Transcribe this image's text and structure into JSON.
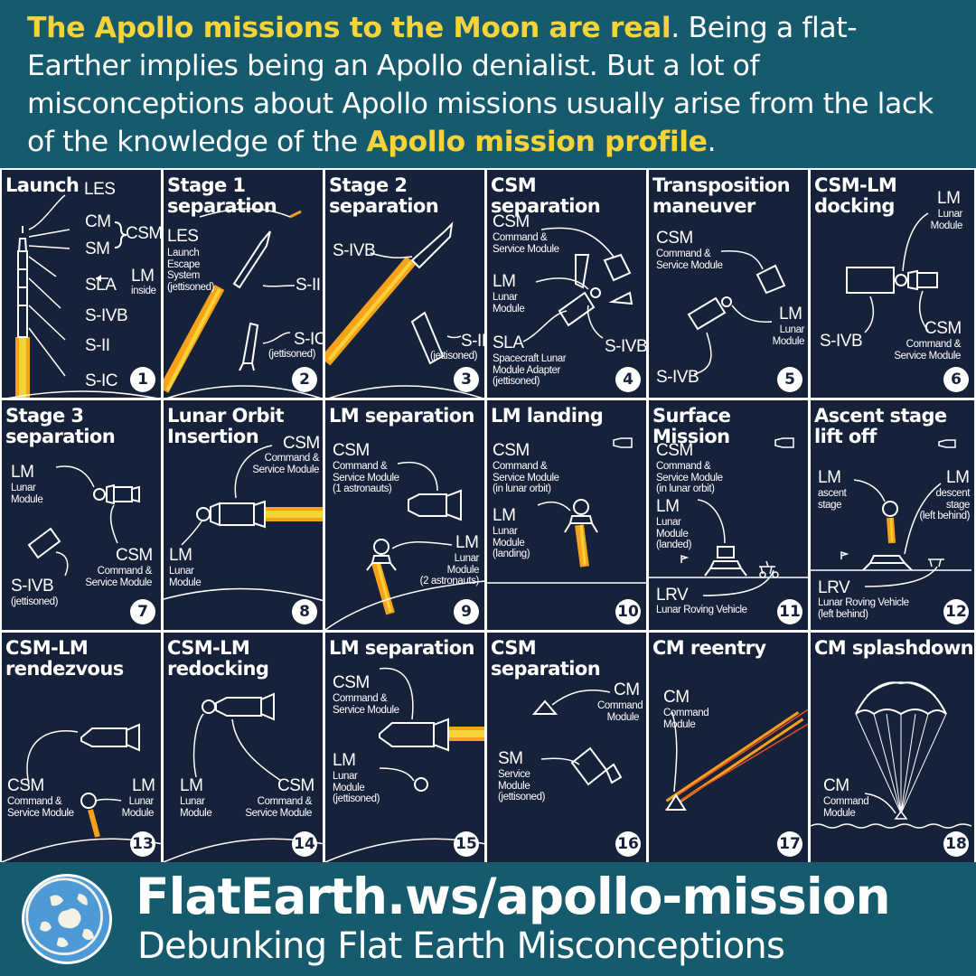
{
  "header": {
    "intro_highlight": "The Apollo missions to the Moon are real",
    "intro_rest": ". Being a flat-Earther implies being an Apollo denialist. But a lot of misconceptions about Apollo missions usually arise from the lack of the knowledge of the ",
    "profile_highlight": "Apollo mission profile",
    "end": "."
  },
  "panels": [
    {
      "title": "Launch",
      "number": "1",
      "labels": {
        "les": "LES",
        "cm": "CM",
        "sm": "SM",
        "csm": "CSM",
        "sla": "SLA",
        "lm": "LM",
        "lm_note": "inside",
        "sivb": "S-IVB",
        "sii": "S-II",
        "sic": "S-IC"
      }
    },
    {
      "title": "Stage 1\nseparation",
      "number": "2",
      "labels": {
        "les": "LES",
        "les_desc": "Launch\nEscape\nSystem\n(jettisoned)",
        "sii": "S-II",
        "sic": "S-IC",
        "sic_note": "(jettisoned)"
      }
    },
    {
      "title": "Stage 2\nseparation",
      "number": "3",
      "labels": {
        "sivb": "S-IVB",
        "sii": "S-II",
        "sii_note": "(jettisoned)"
      }
    },
    {
      "title": "CSM separation",
      "number": "4",
      "labels": {
        "csm": "CSM",
        "csm_desc": "Command &\nService Module",
        "lm": "LM",
        "lm_desc": "Lunar\nModule",
        "sla": "SLA",
        "sla_desc": "Spacecraft Lunar\nModule Adapter\n(jettisoned)",
        "sivb": "S-IVB"
      }
    },
    {
      "title": "Transposition\nmaneuver",
      "number": "5",
      "labels": {
        "csm": "CSM",
        "csm_desc": "Command &\nService Module",
        "lm": "LM",
        "lm_desc": "Lunar\nModule",
        "sivb": "S-IVB"
      }
    },
    {
      "title": "CSM-LM\ndocking",
      "number": "6",
      "labels": {
        "lm": "LM",
        "lm_desc": "Lunar\nModule",
        "sivb": "S-IVB",
        "csm": "CSM",
        "csm_desc": "Command &\nService Module"
      }
    },
    {
      "title": "Stage 3\nseparation",
      "number": "7",
      "labels": {
        "lm": "LM",
        "lm_desc": "Lunar\nModule",
        "sivb": "S-IVB",
        "sivb_note": "(jettisoned)",
        "csm": "CSM",
        "csm_desc": "Command &\nService Module"
      }
    },
    {
      "title": "Lunar Orbit\nInsertion",
      "number": "8",
      "labels": {
        "csm": "CSM",
        "csm_desc": "Command &\nService Module",
        "lm": "LM",
        "lm_desc": "Lunar\nModule"
      }
    },
    {
      "title": "LM separation",
      "number": "9",
      "labels": {
        "csm": "CSM",
        "csm_desc": "Command &\nService Module\n(1 astronauts)",
        "lm": "LM",
        "lm_desc": "Lunar\nModule\n(2 astronauts)"
      }
    },
    {
      "title": "LM landing",
      "number": "10",
      "labels": {
        "csm": "CSM",
        "csm_desc": "Command &\nService Module\n(in lunar orbit)",
        "lm": "LM",
        "lm_desc": "Lunar\nModule\n(landing)"
      }
    },
    {
      "title": "Surface Mission",
      "number": "11",
      "labels": {
        "csm": "CSM",
        "csm_desc": "Command &\nService Module\n(in lunar orbit)",
        "lm": "LM",
        "lm_desc": "Lunar\nModule\n(landed)",
        "lrv": "LRV",
        "lrv_desc": "Lunar Roving Vehicle"
      }
    },
    {
      "title": "Ascent stage\nlift off",
      "number": "12",
      "labels": {
        "lm": "LM",
        "lm_desc": "ascent\nstage",
        "lm2": "LM",
        "lm2_desc": "descent\nstage\n(left behind)",
        "lrv": "LRV",
        "lrv_desc": "Lunar Roving Vehicle\n(left behind)"
      }
    },
    {
      "title": "CSM-LM\nrendezvous",
      "number": "13",
      "labels": {
        "csm": "CSM",
        "csm_desc": "Command &\nService Module",
        "lm": "LM",
        "lm_desc": "Lunar\nModule"
      }
    },
    {
      "title": "CSM-LM\nredocking",
      "number": "14",
      "labels": {
        "lm": "LM",
        "lm_desc": "Lunar\nModule",
        "csm": "CSM",
        "csm_desc": "Command &\nService Module"
      }
    },
    {
      "title": "LM separation",
      "number": "15",
      "labels": {
        "csm": "CSM",
        "csm_desc": "Command &\nService Module",
        "lm": "LM",
        "lm_desc": "Lunar\nModule\n(jettisoned)"
      }
    },
    {
      "title": "CSM separation",
      "number": "16",
      "labels": {
        "cm": "CM",
        "cm_desc": "Command\nModule",
        "sm": "SM",
        "sm_desc": "Service\nModule\n(jettisoned)"
      }
    },
    {
      "title": "CM reentry",
      "number": "17",
      "labels": {
        "cm": "CM",
        "cm_desc": "Command\nModule"
      }
    },
    {
      "title": "CM splashdown",
      "number": "18",
      "labels": {
        "cm": "CM",
        "cm_desc": "Command\nModule"
      }
    }
  ],
  "footer": {
    "site": "FlatEarth.ws/apollo-mission",
    "tagline": "Debunking Flat Earth Misconceptions",
    "logo_icon": "flat-earth-globe-icon"
  },
  "colors": {
    "header_bg": "#165a6e",
    "highlight": "#f7d33a",
    "panel_bg": "#16213a",
    "flame": "#f7a21b"
  }
}
